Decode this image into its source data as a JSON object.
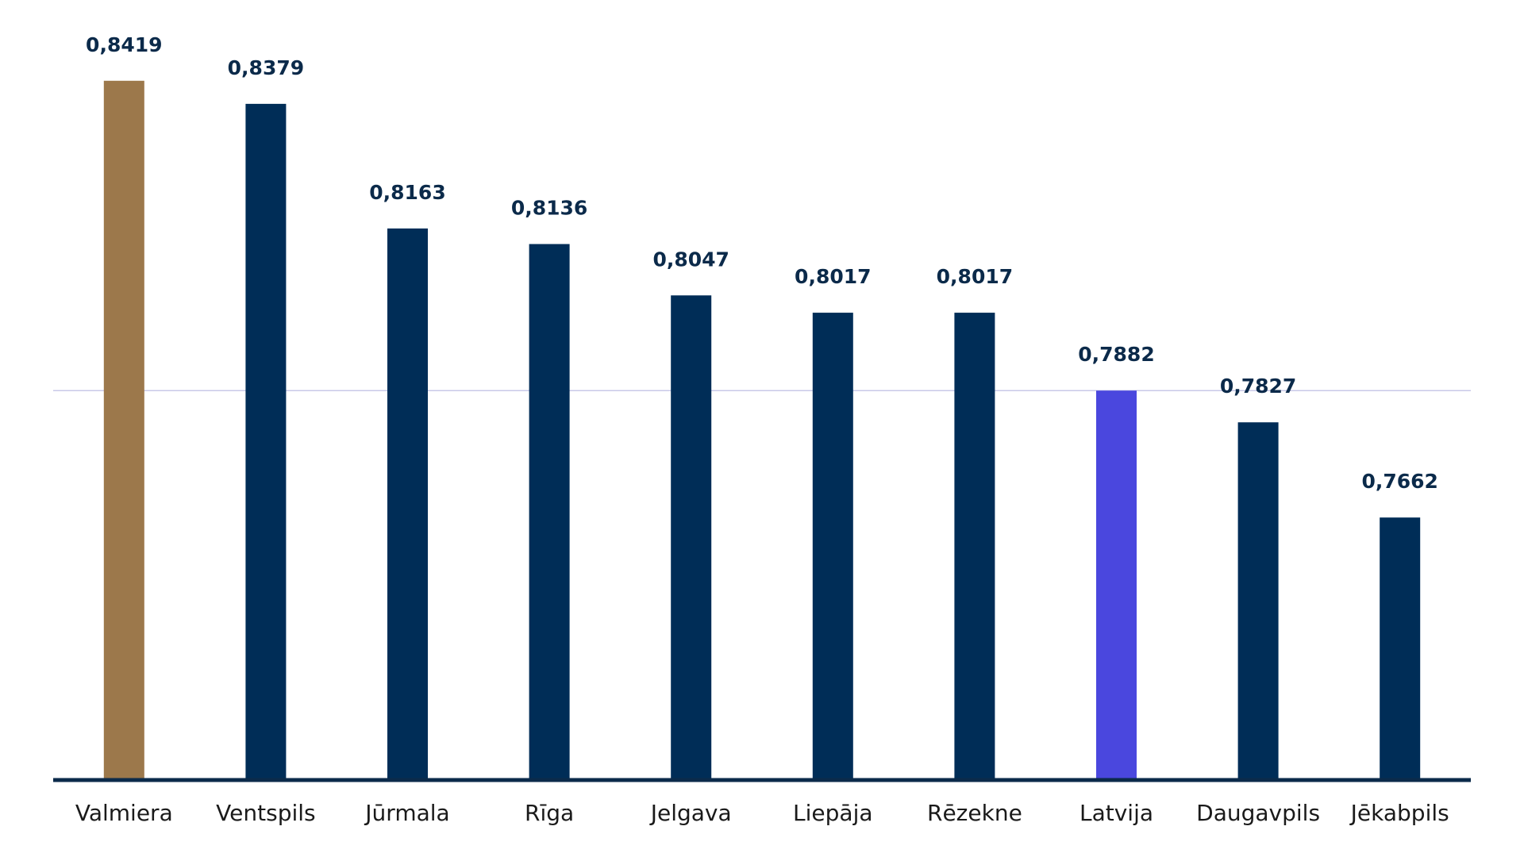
{
  "chart_data": {
    "type": "bar",
    "categories": [
      "Valmiera",
      "Ventspils",
      "Jūrmala",
      "Rīga",
      "Jelgava",
      "Liepāja",
      "Rēzekne",
      "Latvija",
      "Daugavpils",
      "Jēkabpils"
    ],
    "values": [
      0.8419,
      0.8379,
      0.8163,
      0.8136,
      0.8047,
      0.8017,
      0.8017,
      0.7882,
      0.7827,
      0.7662
    ],
    "value_labels": [
      "0,8419",
      "0,8379",
      "0,8163",
      "0,8136",
      "0,8047",
      "0,8017",
      "0,8017",
      "0,7882",
      "0,7827",
      "0,7662"
    ],
    "colors": [
      "#9c784b",
      "#002d57",
      "#002d57",
      "#002d57",
      "#002d57",
      "#002d57",
      "#002d57",
      "#4a47de",
      "#002d57",
      "#002d57"
    ],
    "ylim": [
      0.7207,
      0.8559
    ],
    "reference_line": 0.7882,
    "reference_line_color": "#c9c9e8",
    "baseline_color": "#0b2a4a"
  }
}
